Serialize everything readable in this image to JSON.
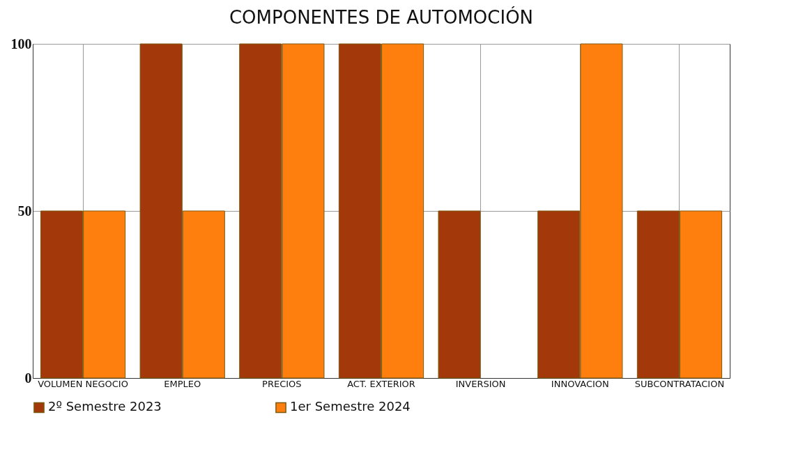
{
  "chart_data": {
    "type": "bar",
    "title": "COMPONENTES  DE  AUTOMOCIÓN",
    "categories": [
      "VOLUMEN NEGOCIO",
      "EMPLEO",
      "PRECIOS",
      "ACT. EXTERIOR",
      "INVERSION",
      "INNOVACION",
      "SUBCONTRATACION"
    ],
    "series": [
      {
        "name": "2º Semestre 2023",
        "color": "#a3380b",
        "values": [
          50,
          100,
          100,
          100,
          50,
          50,
          50
        ]
      },
      {
        "name": "1er Semestre 2024",
        "color": "#ff7f0e",
        "values": [
          50,
          50,
          100,
          100,
          null,
          100,
          50
        ]
      }
    ],
    "ylim": [
      0,
      100
    ],
    "yticks": [
      0,
      50,
      100
    ],
    "grid": true,
    "legend": "bottom"
  }
}
